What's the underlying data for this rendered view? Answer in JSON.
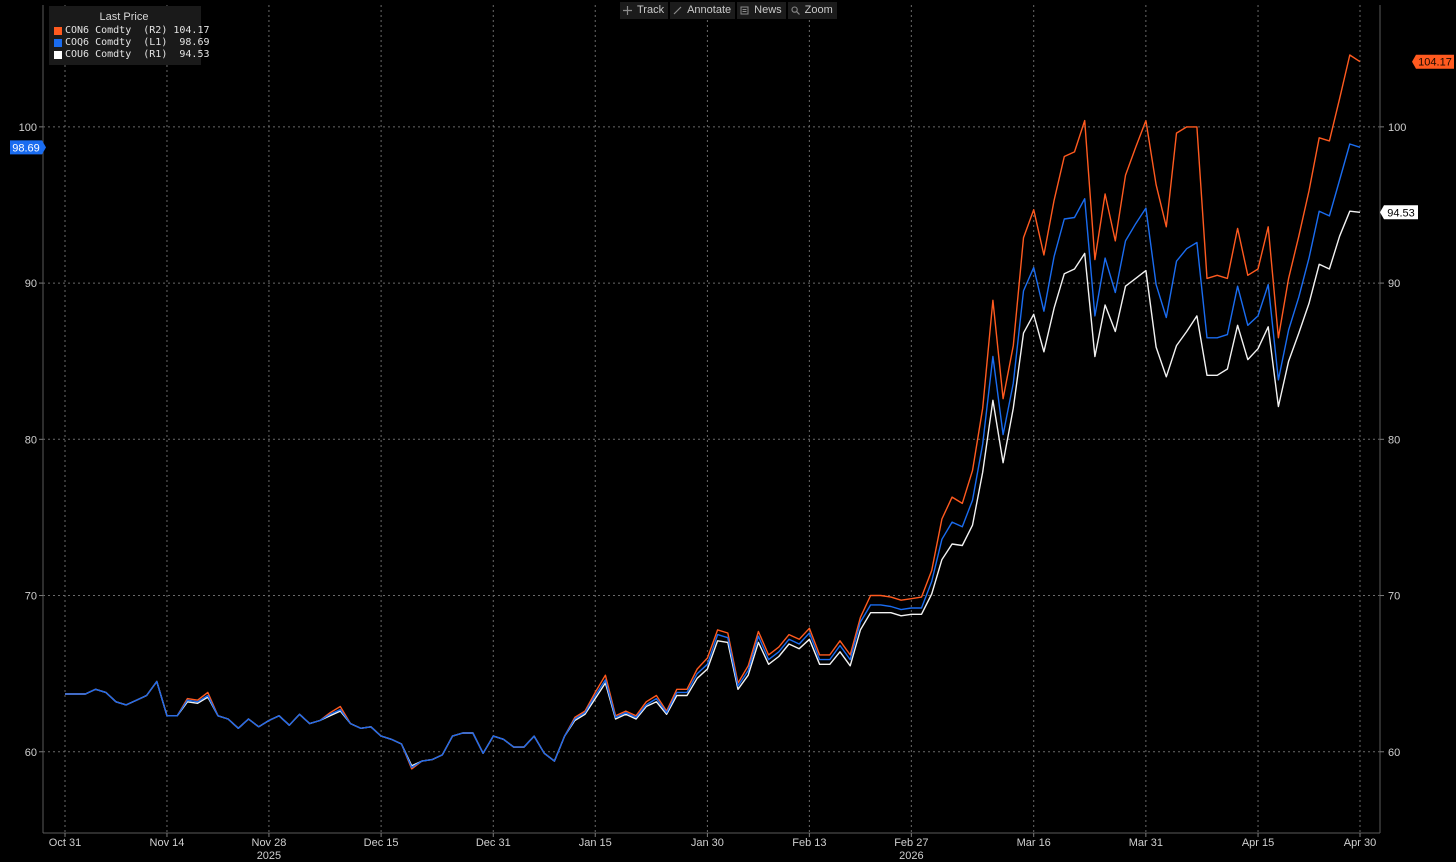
{
  "toolbar": {
    "track": "Track",
    "annotate": "Annotate",
    "news": "News",
    "zoom": "Zoom"
  },
  "legend": {
    "title": "Last Price",
    "rows": [
      {
        "text": "CON6 Comdty  (R2) 104.17",
        "color": "#ff5a1f"
      },
      {
        "text": "COQ6 Comdty  (L1)  98.69",
        "color": "#1a6cf0"
      },
      {
        "text": "COU6 Comdty  (R1)  94.53",
        "color": "#ffffff"
      }
    ]
  },
  "chart_data": {
    "type": "line",
    "x_ticks": [
      {
        "label": "Oct 31",
        "i": 0
      },
      {
        "label": "Nov 14",
        "i": 10
      },
      {
        "label": "Nov 28",
        "i": 20
      },
      {
        "label": "Dec 15",
        "i": 31
      },
      {
        "label": "Dec 31",
        "i": 42
      },
      {
        "label": "Jan 15",
        "i": 52
      },
      {
        "label": "Jan 30",
        "i": 63
      },
      {
        "label": "Feb 13",
        "i": 73
      },
      {
        "label": "Feb 27",
        "i": 83
      },
      {
        "label": "Mar 16",
        "i": 95
      },
      {
        "label": "Mar 31",
        "i": 106
      },
      {
        "label": "Apr 15",
        "i": 117
      },
      {
        "label": "Apr 30",
        "i": 127
      }
    ],
    "year_labels": [
      {
        "label": "2025",
        "i": 20
      },
      {
        "label": "2026",
        "i": 83
      }
    ],
    "y_ticks": [
      60,
      70,
      80,
      90,
      100
    ],
    "ylim": [
      54.8,
      107.8
    ],
    "last_values": {
      "left": "98.69",
      "right_orange": "104.17",
      "right_white": "94.53"
    },
    "series": [
      {
        "name": "CON6 Comdty (R2)",
        "color": "#ff5a1f",
        "values": [
          63.7,
          63.7,
          63.7,
          64.0,
          63.8,
          63.2,
          63.0,
          63.3,
          63.6,
          64.5,
          62.3,
          62.3,
          63.4,
          63.3,
          63.8,
          62.3,
          62.1,
          61.5,
          62.1,
          61.6,
          62.0,
          62.3,
          61.7,
          62.4,
          61.8,
          62.0,
          62.5,
          62.9,
          61.8,
          61.5,
          61.6,
          61.0,
          60.8,
          60.5,
          58.9,
          59.4,
          59.5,
          59.8,
          61.0,
          61.2,
          61.2,
          59.9,
          61.0,
          60.8,
          60.3,
          60.3,
          61.0,
          59.9,
          59.4,
          61.0,
          62.2,
          62.6,
          63.8,
          64.9,
          62.3,
          62.6,
          62.3,
          63.2,
          63.6,
          62.6,
          64.0,
          64.0,
          65.3,
          66.0,
          67.8,
          67.6,
          64.4,
          65.5,
          67.7,
          66.2,
          66.7,
          67.5,
          67.2,
          67.9,
          66.2,
          66.2,
          67.1,
          66.2,
          68.6,
          70.0,
          70.0,
          69.9,
          69.7,
          69.8,
          69.9,
          71.6,
          74.9,
          76.3,
          75.9,
          78.0,
          82.0,
          88.9,
          82.6,
          86.0,
          92.9,
          94.7,
          91.8,
          95.3,
          98.1,
          98.4,
          100.4,
          91.5,
          95.7,
          92.7,
          96.9,
          98.7,
          100.4,
          96.3,
          93.6,
          99.6,
          100.0,
          100.0,
          90.3,
          90.5,
          90.3,
          93.5,
          90.5,
          90.9,
          93.6,
          86.5,
          90.3,
          93.0,
          95.9,
          99.3,
          99.1,
          101.8,
          104.6,
          104.17
        ]
      },
      {
        "name": "COQ6 Comdty (L1)",
        "color": "#1a6cf0",
        "values": [
          63.7,
          63.7,
          63.7,
          64.0,
          63.8,
          63.2,
          63.0,
          63.3,
          63.6,
          64.5,
          62.3,
          62.3,
          63.3,
          63.2,
          63.6,
          62.3,
          62.1,
          61.5,
          62.1,
          61.6,
          62.0,
          62.3,
          61.7,
          62.4,
          61.8,
          62.0,
          62.4,
          62.7,
          61.8,
          61.5,
          61.6,
          61.0,
          60.8,
          60.5,
          59.0,
          59.4,
          59.5,
          59.8,
          61.0,
          61.2,
          61.2,
          59.9,
          61.0,
          60.8,
          60.3,
          60.3,
          61.0,
          59.9,
          59.4,
          61.0,
          62.1,
          62.5,
          63.6,
          64.6,
          62.2,
          62.5,
          62.2,
          63.0,
          63.4,
          62.5,
          63.8,
          63.8,
          65.0,
          65.6,
          67.5,
          67.3,
          64.2,
          65.2,
          67.4,
          65.9,
          66.4,
          67.2,
          66.9,
          67.6,
          65.9,
          65.9,
          66.8,
          65.9,
          68.3,
          69.4,
          69.4,
          69.3,
          69.1,
          69.2,
          69.2,
          70.9,
          73.6,
          74.7,
          74.4,
          76.1,
          79.7,
          85.3,
          80.3,
          83.6,
          89.5,
          91.0,
          88.2,
          91.7,
          94.1,
          94.2,
          95.4,
          87.9,
          91.6,
          89.4,
          92.7,
          93.8,
          94.8,
          89.9,
          87.8,
          91.4,
          92.2,
          92.6,
          86.5,
          86.5,
          86.7,
          89.8,
          87.3,
          87.9,
          89.9,
          83.8,
          87.0,
          89.1,
          91.6,
          94.6,
          94.3,
          96.6,
          98.9,
          98.69
        ]
      },
      {
        "name": "COU6 Comdty (R1)",
        "color": "#f2f2f2",
        "values": [
          63.7,
          63.7,
          63.7,
          64.0,
          63.8,
          63.2,
          63.0,
          63.3,
          63.6,
          64.5,
          62.3,
          62.3,
          63.2,
          63.1,
          63.5,
          62.3,
          62.1,
          61.5,
          62.1,
          61.6,
          62.0,
          62.3,
          61.7,
          62.4,
          61.8,
          62.0,
          62.3,
          62.6,
          61.8,
          61.5,
          61.6,
          61.0,
          60.8,
          60.5,
          59.1,
          59.4,
          59.5,
          59.8,
          61.0,
          61.2,
          61.2,
          59.9,
          61.0,
          60.8,
          60.3,
          60.3,
          61.0,
          59.9,
          59.4,
          61.0,
          62.0,
          62.4,
          63.4,
          64.4,
          62.1,
          62.4,
          62.1,
          62.9,
          63.2,
          62.4,
          63.6,
          63.6,
          64.7,
          65.3,
          67.1,
          67.0,
          64.0,
          64.9,
          67.0,
          65.6,
          66.1,
          66.9,
          66.6,
          67.2,
          65.6,
          65.6,
          66.4,
          65.5,
          67.8,
          68.9,
          68.9,
          68.9,
          68.7,
          68.8,
          68.8,
          70.1,
          72.3,
          73.3,
          73.2,
          74.5,
          77.9,
          82.5,
          78.5,
          82.0,
          86.8,
          88.0,
          85.6,
          88.4,
          90.6,
          90.9,
          91.9,
          85.3,
          88.6,
          86.9,
          89.8,
          90.3,
          90.8,
          85.9,
          84.0,
          86.0,
          86.9,
          87.9,
          84.1,
          84.1,
          84.5,
          87.3,
          85.1,
          85.8,
          87.2,
          82.1,
          85.0,
          86.8,
          88.7,
          91.2,
          90.9,
          93.0,
          94.6,
          94.53
        ]
      }
    ]
  }
}
